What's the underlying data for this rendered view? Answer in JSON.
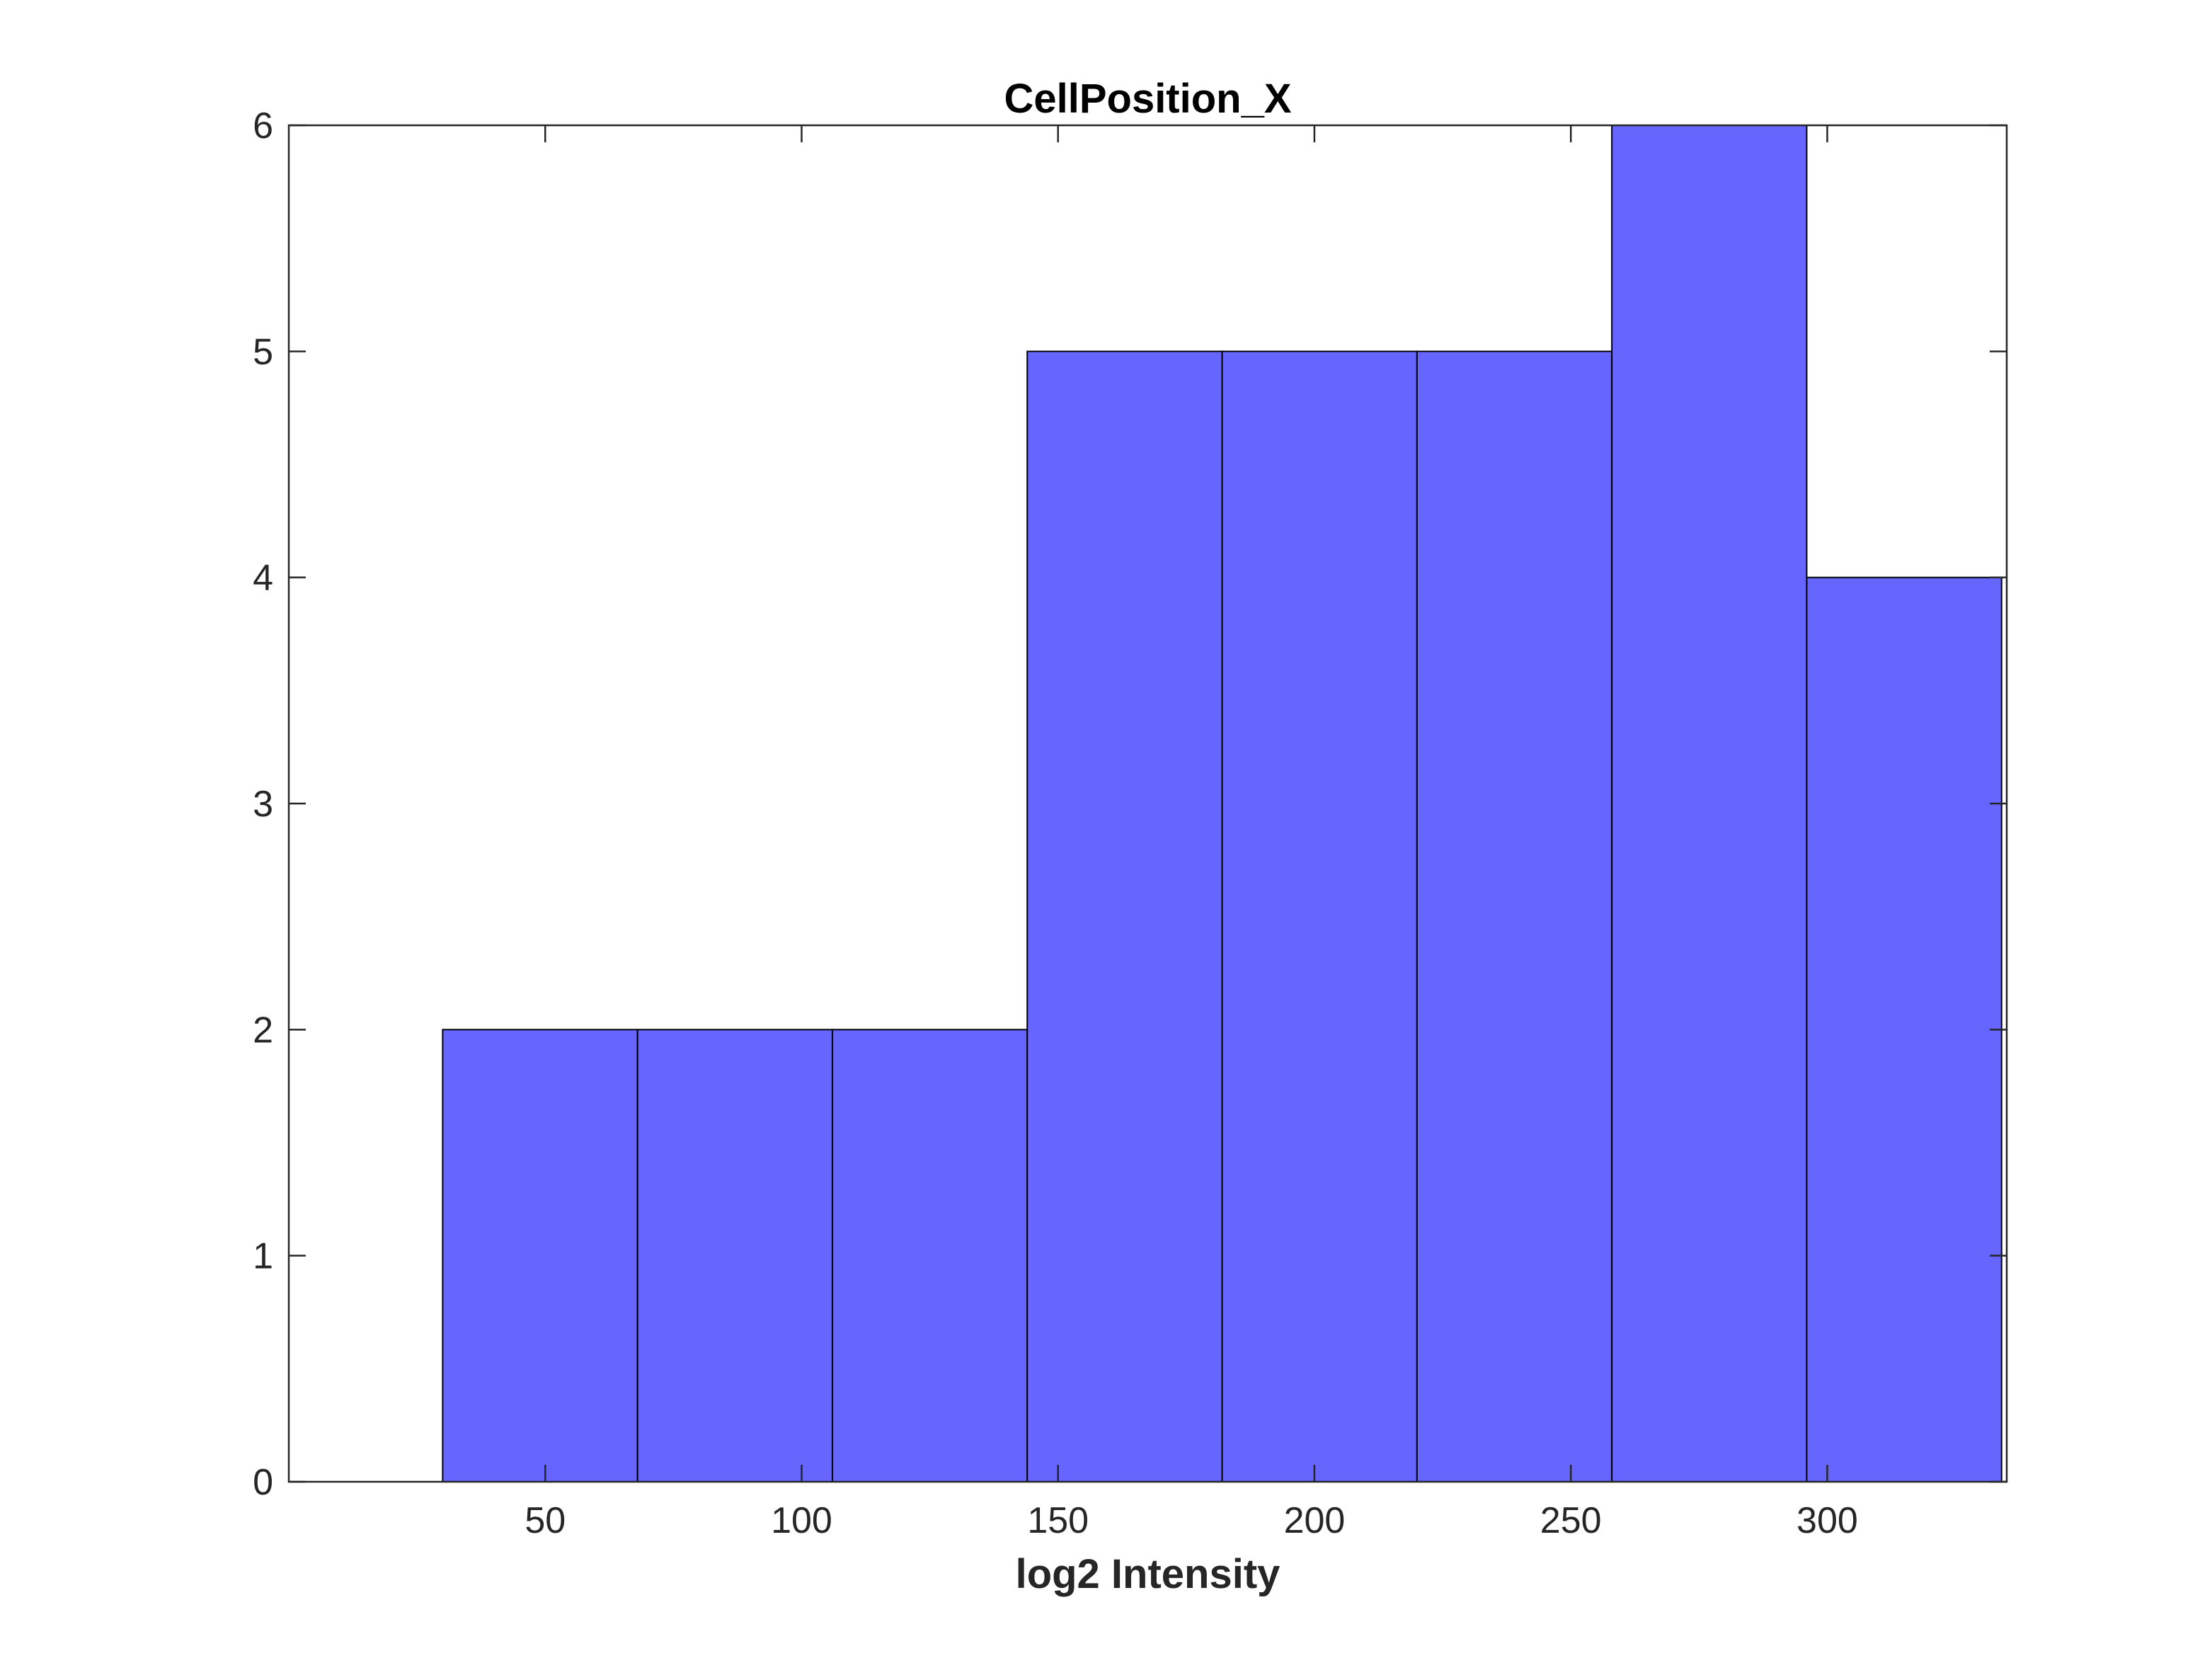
{
  "chart_data": {
    "type": "bar",
    "title": "CellPosition_X",
    "xlabel": "log2 Intensity",
    "ylabel": "",
    "xlim": [
      0,
      335
    ],
    "ylim": [
      0,
      6
    ],
    "grid": false,
    "bar_color": "#6666FF",
    "bar_edge_color": "#000000",
    "axis_color": "#262626",
    "bins": [
      {
        "start": 30,
        "end": 68,
        "count": 2
      },
      {
        "start": 68,
        "end": 106,
        "count": 2
      },
      {
        "start": 106,
        "end": 144,
        "count": 2
      },
      {
        "start": 144,
        "end": 182,
        "count": 5
      },
      {
        "start": 182,
        "end": 220,
        "count": 5
      },
      {
        "start": 220,
        "end": 258,
        "count": 5
      },
      {
        "start": 258,
        "end": 296,
        "count": 6
      },
      {
        "start": 296,
        "end": 334,
        "count": 4
      }
    ],
    "xticks": [
      50,
      100,
      150,
      200,
      250,
      300
    ],
    "yticks": [
      0,
      1,
      2,
      3,
      4,
      5,
      6
    ]
  }
}
